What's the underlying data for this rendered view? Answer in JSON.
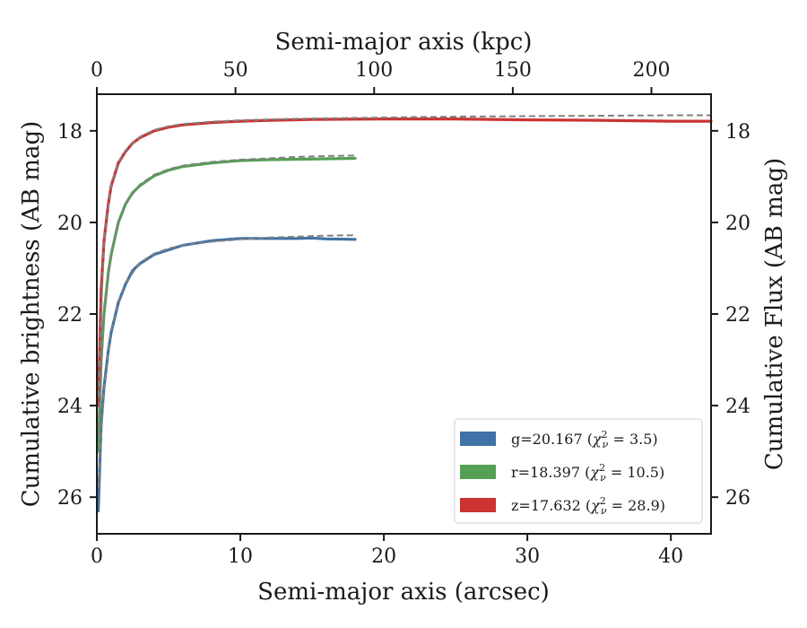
{
  "chart_data": {
    "type": "line",
    "xlabel": "Semi-major axis (arcsec)",
    "ylabel": "Cumulative brightness (AB mag)",
    "top_xlabel": "Semi-major axis (kpc)",
    "right_ylabel": "Cumulative Flux (AB mag)",
    "xlim": [
      0,
      42.8
    ],
    "ylim": [
      26.8,
      17.2
    ],
    "top_xlim": [
      0,
      221.5
    ],
    "y_inverted": true,
    "x_ticks": [
      0,
      10,
      20,
      30,
      40
    ],
    "y_ticks": [
      18,
      20,
      22,
      24,
      26
    ],
    "top_x_ticks": [
      0,
      50,
      100,
      150,
      200
    ],
    "x_tick_labels": [
      "0",
      "10",
      "20",
      "30",
      "40"
    ],
    "y_tick_labels": [
      "18",
      "20",
      "22",
      "24",
      "26"
    ],
    "top_x_tick_labels": [
      "0",
      "50",
      "100",
      "150",
      "200"
    ],
    "grid": false,
    "legend_position": "lower-right",
    "legend": [
      {
        "label": "g=20.167 (χ²ν = 3.5)",
        "prefix": "g=20.167 (",
        "chi": "χ",
        "sup": "2",
        "sub": "ν",
        "suffix": " = 3.5)",
        "color": "#3f72a6"
      },
      {
        "label": "r=18.397 (χ²ν = 10.5)",
        "prefix": "r=18.397 (",
        "chi": "χ",
        "sup": "2",
        "sub": "ν",
        "suffix": " = 10.5)",
        "color": "#55a055"
      },
      {
        "label": "z=17.632 (χ²ν = 28.9)",
        "prefix": "z=17.632 (",
        "chi": "χ",
        "sup": "2",
        "sub": "ν",
        "suffix": " = 28.9)",
        "color": "#cc3333"
      }
    ],
    "series": [
      {
        "band": "g",
        "color": "#3f72a6",
        "x": [
          0.1,
          0.3,
          0.5,
          0.8,
          1.0,
          1.5,
          2.0,
          2.5,
          3.0,
          4.0,
          5.0,
          6.0,
          8.0,
          10.0,
          12.0,
          14.0,
          15.0,
          16.0,
          18.0
        ],
        "y": [
          26.3,
          24.4,
          23.6,
          22.8,
          22.4,
          21.75,
          21.35,
          21.05,
          20.9,
          20.7,
          20.6,
          20.5,
          20.4,
          20.35,
          20.35,
          20.35,
          20.34,
          20.36,
          20.37
        ]
      },
      {
        "band": "r",
        "color": "#55a055",
        "x": [
          0.1,
          0.3,
          0.5,
          0.8,
          1.0,
          1.5,
          2.0,
          2.5,
          3.0,
          4.0,
          5.0,
          6.0,
          8.0,
          10.0,
          12.0,
          14.0,
          16.0,
          18.0
        ],
        "y": [
          25.0,
          23.0,
          22.0,
          21.1,
          20.7,
          20.0,
          19.6,
          19.35,
          19.2,
          18.98,
          18.86,
          18.78,
          18.7,
          18.65,
          18.63,
          18.62,
          18.61,
          18.6
        ]
      },
      {
        "band": "z",
        "color": "#cc3333",
        "x": [
          0.1,
          0.3,
          0.5,
          0.8,
          1.0,
          1.5,
          2.0,
          2.5,
          3.0,
          4.0,
          5.0,
          6.0,
          8.0,
          10.0,
          12.0,
          15.0,
          20.0,
          25.0,
          30.0,
          35.0,
          40.0,
          42.8
        ],
        "y": [
          24.0,
          21.5,
          20.4,
          19.6,
          19.2,
          18.7,
          18.45,
          18.27,
          18.15,
          18.0,
          17.92,
          17.87,
          17.82,
          17.79,
          17.77,
          17.75,
          17.74,
          17.74,
          17.76,
          17.77,
          17.79,
          17.79
        ]
      }
    ],
    "models": [
      {
        "band": "g",
        "x": [
          0.1,
          0.5,
          1.0,
          1.5,
          2.0,
          3.0,
          4.0,
          5.0,
          6.0,
          8.0,
          10.0,
          12.0,
          14.0,
          16.0,
          18.0
        ],
        "y": [
          25.8,
          23.6,
          22.35,
          21.72,
          21.32,
          20.88,
          20.68,
          20.57,
          20.5,
          20.42,
          20.37,
          20.33,
          20.31,
          20.29,
          20.28
        ],
        "color": "#808080"
      },
      {
        "band": "r",
        "x": [
          0.1,
          0.5,
          1.0,
          1.5,
          2.0,
          3.0,
          4.0,
          5.0,
          6.0,
          8.0,
          10.0,
          12.0,
          14.0,
          16.0,
          18.0
        ],
        "y": [
          24.7,
          21.9,
          20.65,
          19.98,
          19.58,
          19.17,
          18.96,
          18.84,
          18.76,
          18.68,
          18.63,
          18.6,
          18.57,
          18.55,
          18.54
        ],
        "color": "#808080"
      },
      {
        "band": "z",
        "x": [
          0.1,
          0.5,
          1.0,
          1.5,
          2.0,
          3.0,
          4.0,
          5.0,
          6.0,
          8.0,
          10.0,
          12.0,
          15.0,
          20.0,
          25.0,
          30.0,
          35.0,
          40.0,
          42.8
        ],
        "y": [
          23.8,
          20.35,
          19.18,
          18.68,
          18.43,
          18.13,
          17.98,
          17.9,
          17.85,
          17.8,
          17.77,
          17.75,
          17.73,
          17.71,
          17.69,
          17.68,
          17.67,
          17.66,
          17.66
        ],
        "color": "#808080"
      }
    ]
  }
}
